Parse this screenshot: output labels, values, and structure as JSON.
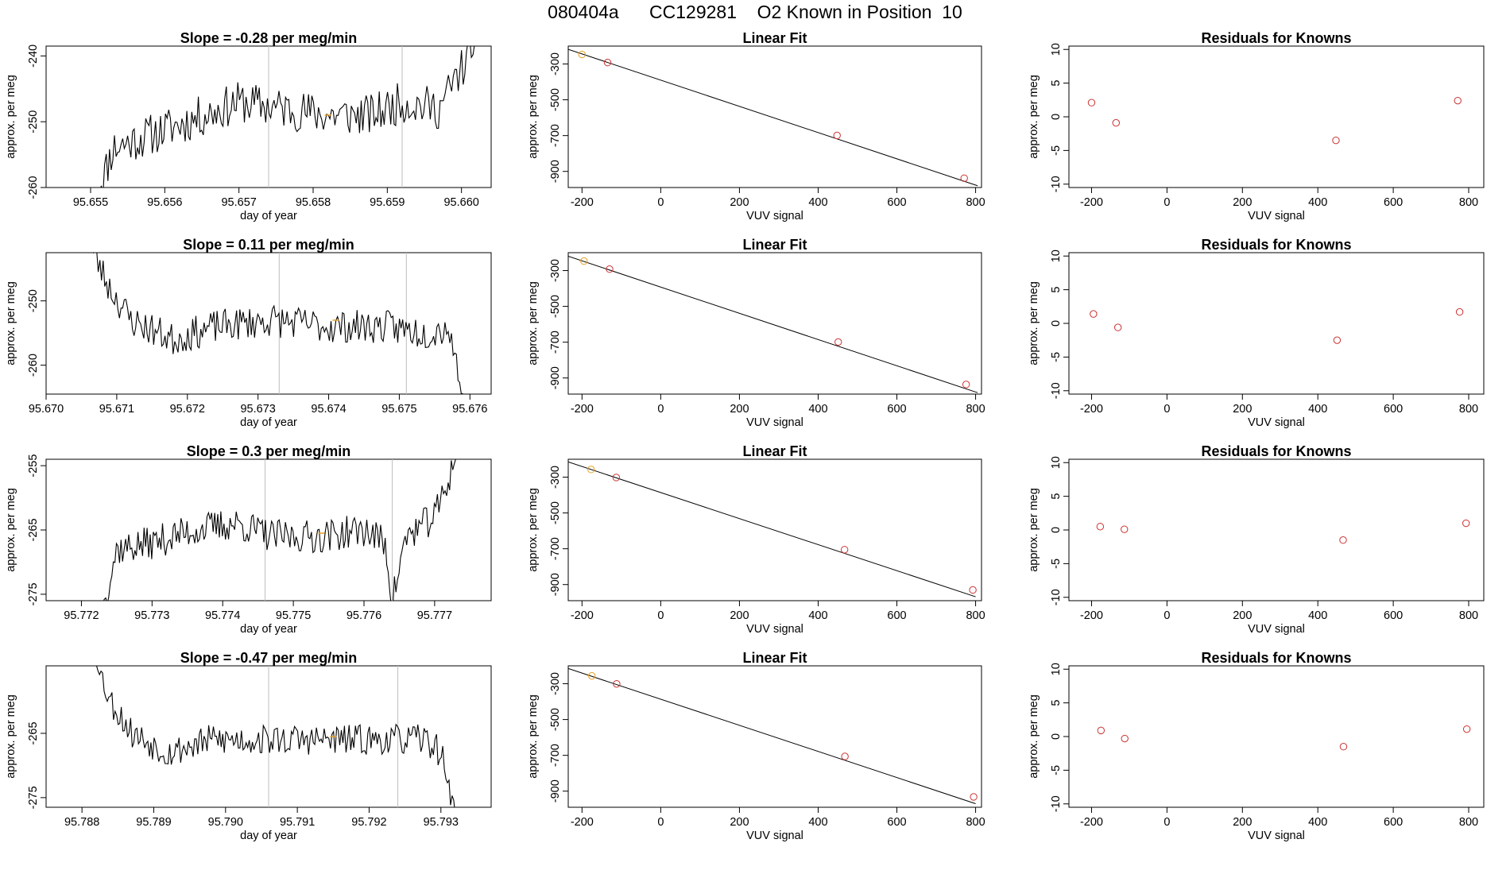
{
  "title": "080404a      CC129281    O2 Known in Position  10",
  "colors": {
    "trace": "#000000",
    "vline": "#bebebe",
    "reference_marker": "#e8a020",
    "residual_marker": "#cc3333",
    "fit_line": "#000000"
  },
  "chart_data": [
    {
      "row": 1,
      "panels": [
        {
          "type": "line",
          "title": "Slope =  -0.28  per meg/min",
          "xlabel": "day of year",
          "ylabel": "approx. per meg",
          "xlim": [
            95.6544,
            95.6604
          ],
          "ylim": [
            -260,
            -238.5
          ],
          "xticks": [
            "95.655",
            "95.656",
            "95.657",
            "95.658",
            "95.659",
            "95.660"
          ],
          "yticks": [
            "-240",
            "-250",
            "-260"
          ],
          "ytick_values": [
            -240,
            -250,
            -260
          ],
          "markers": [
            95.6574,
            95.6592
          ],
          "highlight": [
            95.6582,
            -249
          ],
          "trace_start": 95.6551,
          "trace_end": 95.6602,
          "trace_anchors": [
            [
              95.6551,
              -261
            ],
            [
              95.6553,
              -254
            ],
            [
              95.6558,
              -252
            ],
            [
              95.6563,
              -250
            ],
            [
              95.657,
              -247
            ],
            [
              95.6576,
              -248
            ],
            [
              95.6582,
              -249
            ],
            [
              95.6588,
              -249
            ],
            [
              95.6592,
              -247
            ],
            [
              95.6597,
              -248
            ],
            [
              95.6599,
              -244
            ],
            [
              95.6602,
              -238
            ]
          ],
          "trace_noise": 3.2,
          "seed": 11
        },
        {
          "type": "scatter",
          "title": "Linear Fit",
          "xlabel": "VUV signal",
          "ylabel": "approx. per meg",
          "xlim": [
            -235,
            815
          ],
          "ylim": [
            -990,
            -200
          ],
          "xticks": [
            -200,
            0,
            200,
            400,
            600,
            800
          ],
          "yticks": [
            -300,
            -500,
            -700,
            -900
          ],
          "fit_line": [
            [
              -235,
              -218
            ],
            [
              805,
              -980
            ]
          ],
          "points": [
            {
              "x": -200,
              "y": -247,
              "kind": "reference"
            },
            {
              "x": -135,
              "y": -292,
              "kind": "known"
            },
            {
              "x": 448,
              "y": -699,
              "kind": "known"
            },
            {
              "x": 771,
              "y": -938,
              "kind": "known"
            }
          ]
        },
        {
          "type": "scatter",
          "title": "Residuals for Knowns",
          "xlabel": "VUV signal",
          "ylabel": "approx. per meg",
          "xlim": [
            -260,
            840
          ],
          "ylim": [
            -10.5,
            10.5
          ],
          "xticks": [
            -200,
            0,
            200,
            400,
            600,
            800
          ],
          "yticks": [
            10,
            5,
            0,
            -5,
            -10
          ],
          "points": [
            {
              "x": -200,
              "y": 2.1
            },
            {
              "x": -135,
              "y": -0.9
            },
            {
              "x": 448,
              "y": -3.5
            },
            {
              "x": 771,
              "y": 2.4
            }
          ]
        }
      ]
    },
    {
      "row": 2,
      "panels": [
        {
          "type": "line",
          "title": "Slope =  0.11  per meg/min",
          "xlabel": "day of year",
          "ylabel": "approx. per meg",
          "xlim": [
            95.67,
            95.6763
          ],
          "ylim": [
            -264.5,
            -242.5
          ],
          "xticks": [
            "95.670",
            "95.671",
            "95.672",
            "95.673",
            "95.674",
            "95.675",
            "95.676"
          ],
          "yticks": [
            "-250",
            "-260"
          ],
          "ytick_values": [
            -250,
            -260
          ],
          "markers": [
            95.6733,
            95.6751
          ],
          "highlight": [
            95.6741,
            -253
          ],
          "trace_start": 95.6706,
          "trace_end": 95.6759,
          "trace_anchors": [
            [
              95.6706,
              -241
            ],
            [
              95.6709,
              -248
            ],
            [
              95.6712,
              -253
            ],
            [
              95.6718,
              -256
            ],
            [
              95.6724,
              -254
            ],
            [
              95.6732,
              -253
            ],
            [
              95.674,
              -254
            ],
            [
              95.6748,
              -254
            ],
            [
              95.6754,
              -255
            ],
            [
              95.6757,
              -254
            ],
            [
              95.6759,
              -265
            ]
          ],
          "trace_noise": 2.6,
          "seed": 23
        },
        {
          "type": "scatter",
          "title": "Linear Fit",
          "xlabel": "VUV signal",
          "ylabel": "approx. per meg",
          "xlim": [
            -235,
            815
          ],
          "ylim": [
            -990,
            -200
          ],
          "xticks": [
            -200,
            0,
            200,
            400,
            600,
            800
          ],
          "yticks": [
            -300,
            -500,
            -700,
            -900
          ],
          "fit_line": [
            [
              -235,
              -220
            ],
            [
              805,
              -982
            ]
          ],
          "points": [
            {
              "x": -195,
              "y": -247,
              "kind": "reference"
            },
            {
              "x": -130,
              "y": -292,
              "kind": "known"
            },
            {
              "x": 451,
              "y": -699,
              "kind": "known"
            },
            {
              "x": 776,
              "y": -936,
              "kind": "known"
            }
          ]
        },
        {
          "type": "scatter",
          "title": "Residuals for Knowns",
          "xlabel": "VUV signal",
          "ylabel": "approx. per meg",
          "xlim": [
            -260,
            840
          ],
          "ylim": [
            -10.5,
            10.5
          ],
          "xticks": [
            -200,
            0,
            200,
            400,
            600,
            800
          ],
          "yticks": [
            10,
            5,
            0,
            -5,
            -10
          ],
          "points": [
            {
              "x": -195,
              "y": 1.4
            },
            {
              "x": -130,
              "y": -0.6
            },
            {
              "x": 451,
              "y": -2.5
            },
            {
              "x": 776,
              "y": 1.7
            }
          ]
        }
      ]
    },
    {
      "row": 3,
      "panels": [
        {
          "type": "line",
          "title": "Slope =  0.3  per meg/min",
          "xlabel": "day of year",
          "ylabel": "approx. per meg",
          "xlim": [
            95.7715,
            95.7778
          ],
          "ylim": [
            -276,
            -254
          ],
          "xticks": [
            "95.772",
            "95.773",
            "95.774",
            "95.775",
            "95.776",
            "95.777"
          ],
          "yticks": [
            "-255",
            "-265",
            "-275"
          ],
          "ytick_values": [
            -255,
            -265,
            -275
          ],
          "markers": [
            95.7746,
            95.7764
          ],
          "highlight": [
            95.7754,
            -265.5
          ],
          "trace_start": 95.7723,
          "trace_end": 95.7773,
          "trace_anchors": [
            [
              95.7723,
              -277
            ],
            [
              95.7725,
              -268
            ],
            [
              95.773,
              -267
            ],
            [
              95.7736,
              -265
            ],
            [
              95.7742,
              -264
            ],
            [
              95.7747,
              -266
            ],
            [
              95.7754,
              -266
            ],
            [
              95.776,
              -265
            ],
            [
              95.7763,
              -267
            ],
            [
              95.7764,
              -276
            ],
            [
              95.7766,
              -266
            ],
            [
              95.777,
              -263
            ],
            [
              95.7773,
              -254
            ]
          ],
          "trace_noise": 2.6,
          "seed": 37
        },
        {
          "type": "scatter",
          "title": "Linear Fit",
          "xlabel": "VUV signal",
          "ylabel": "approx. per meg",
          "xlim": [
            -235,
            815
          ],
          "ylim": [
            -990,
            -200
          ],
          "xticks": [
            -200,
            0,
            200,
            400,
            600,
            800
          ],
          "yticks": [
            -300,
            -500,
            -700,
            -900
          ],
          "fit_line": [
            [
              -235,
              -215
            ],
            [
              800,
              -968
            ]
          ],
          "points": [
            {
              "x": -177,
              "y": -257,
              "kind": "reference"
            },
            {
              "x": -113,
              "y": -302,
              "kind": "known"
            },
            {
              "x": 467,
              "y": -705,
              "kind": "known"
            },
            {
              "x": 793,
              "y": -930,
              "kind": "known"
            }
          ]
        },
        {
          "type": "scatter",
          "title": "Residuals for Knowns",
          "xlabel": "VUV signal",
          "ylabel": "approx. per meg",
          "xlim": [
            -260,
            840
          ],
          "ylim": [
            -10.5,
            10.5
          ],
          "xticks": [
            -200,
            0,
            200,
            400,
            600,
            800
          ],
          "yticks": [
            10,
            5,
            0,
            -5,
            -10
          ],
          "points": [
            {
              "x": -177,
              "y": 0.5
            },
            {
              "x": -113,
              "y": 0.1
            },
            {
              "x": 467,
              "y": -1.5
            },
            {
              "x": 793,
              "y": 1.0
            }
          ]
        }
      ]
    },
    {
      "row": 4,
      "panels": [
        {
          "type": "line",
          "title": "Slope =  -0.47  per meg/min",
          "xlabel": "day of year",
          "ylabel": "approx. per meg",
          "xlim": [
            95.7875,
            95.7937
          ],
          "ylim": [
            -276.5,
            -254.5
          ],
          "xticks": [
            "95.788",
            "95.789",
            "95.790",
            "95.791",
            "95.792",
            "95.793"
          ],
          "yticks": [
            "-265",
            "-275"
          ],
          "ytick_values": [
            -265,
            -275
          ],
          "markers": [
            95.7906,
            95.7924
          ],
          "highlight": [
            95.7915,
            -265.5
          ],
          "trace_start": 95.7882,
          "trace_end": 95.7932,
          "trace_anchors": [
            [
              95.7882,
              -254
            ],
            [
              95.7884,
              -260
            ],
            [
              95.7887,
              -265
            ],
            [
              95.7892,
              -268
            ],
            [
              95.7898,
              -266
            ],
            [
              95.7905,
              -266
            ],
            [
              95.7912,
              -266
            ],
            [
              95.7918,
              -266
            ],
            [
              95.7923,
              -266
            ],
            [
              95.7928,
              -266
            ],
            [
              95.793,
              -268
            ],
            [
              95.7932,
              -277
            ]
          ],
          "trace_noise": 2.4,
          "seed": 53
        },
        {
          "type": "scatter",
          "title": "Linear Fit",
          "xlabel": "VUV signal",
          "ylabel": "approx. per meg",
          "xlim": [
            -235,
            815
          ],
          "ylim": [
            -990,
            -200
          ],
          "xticks": [
            -200,
            0,
            200,
            400,
            600,
            800
          ],
          "yticks": [
            -300,
            -500,
            -700,
            -900
          ],
          "fit_line": [
            [
              -235,
              -215
            ],
            [
              800,
              -970
            ]
          ],
          "points": [
            {
              "x": -175,
              "y": -256,
              "kind": "reference"
            },
            {
              "x": -112,
              "y": -301,
              "kind": "known"
            },
            {
              "x": 468,
              "y": -706,
              "kind": "known"
            },
            {
              "x": 795,
              "y": -932,
              "kind": "known"
            }
          ]
        },
        {
          "type": "scatter",
          "title": "Residuals for Knowns",
          "xlabel": "VUV signal",
          "ylabel": "approx. per meg",
          "xlim": [
            -260,
            840
          ],
          "ylim": [
            -10.5,
            10.5
          ],
          "xticks": [
            -200,
            0,
            200,
            400,
            600,
            800
          ],
          "yticks": [
            10,
            5,
            0,
            -5,
            -10
          ],
          "points": [
            {
              "x": -175,
              "y": 0.9
            },
            {
              "x": -112,
              "y": -0.3
            },
            {
              "x": 468,
              "y": -1.5
            },
            {
              "x": 795,
              "y": 1.1
            }
          ]
        }
      ]
    }
  ]
}
